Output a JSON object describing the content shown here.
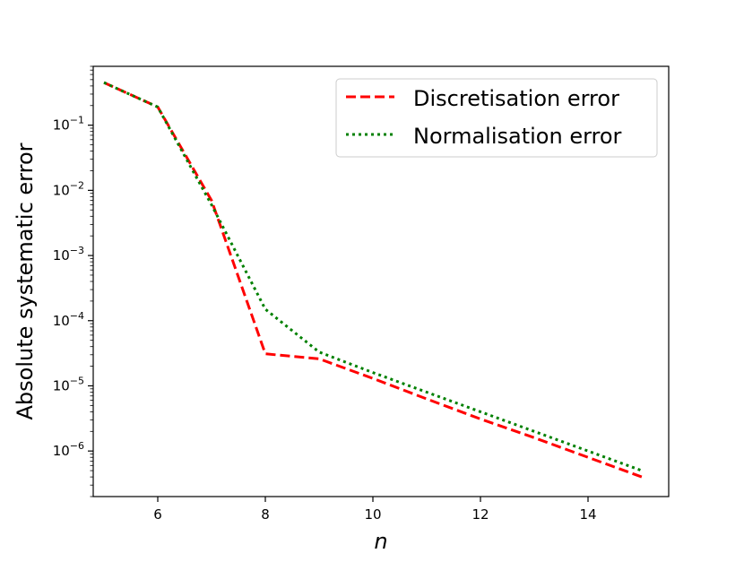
{
  "chart_data": {
    "type": "line",
    "title": "",
    "xlabel": "n",
    "ylabel": "Absolute systematic error",
    "x": [
      5,
      6,
      7,
      8,
      9,
      10,
      11,
      12,
      13,
      14,
      15
    ],
    "xlim": [
      4.8,
      15.5
    ],
    "ylim": [
      2e-07,
      0.8
    ],
    "yscale": "log",
    "xticks": [
      6,
      8,
      10,
      12,
      14
    ],
    "yticks": [
      {
        "value": 1e-06,
        "base": "10",
        "exp": "−6"
      },
      {
        "value": 1e-05,
        "base": "10",
        "exp": "−5"
      },
      {
        "value": 0.0001,
        "base": "10",
        "exp": "−4"
      },
      {
        "value": 0.001,
        "base": "10",
        "exp": "−3"
      },
      {
        "value": 0.01,
        "base": "10",
        "exp": "−2"
      },
      {
        "value": 0.1,
        "base": "10",
        "exp": "−1"
      }
    ],
    "grid": false,
    "legend_position": "top-right",
    "series": [
      {
        "name": "Discretisation error",
        "color": "#ff0000",
        "style": "dashed",
        "values": [
          0.45,
          0.19,
          0.007,
          3.1e-05,
          2.6e-05,
          1.3e-05,
          6.3e-06,
          3.1e-06,
          1.6e-06,
          8e-07,
          4e-07
        ]
      },
      {
        "name": "Normalisation error",
        "color": "#008000",
        "style": "dotted",
        "values": [
          0.45,
          0.19,
          0.006,
          0.00015,
          3.3e-05,
          1.6e-05,
          8e-06,
          4e-06,
          2e-06,
          1e-06,
          5e-07
        ]
      }
    ]
  }
}
